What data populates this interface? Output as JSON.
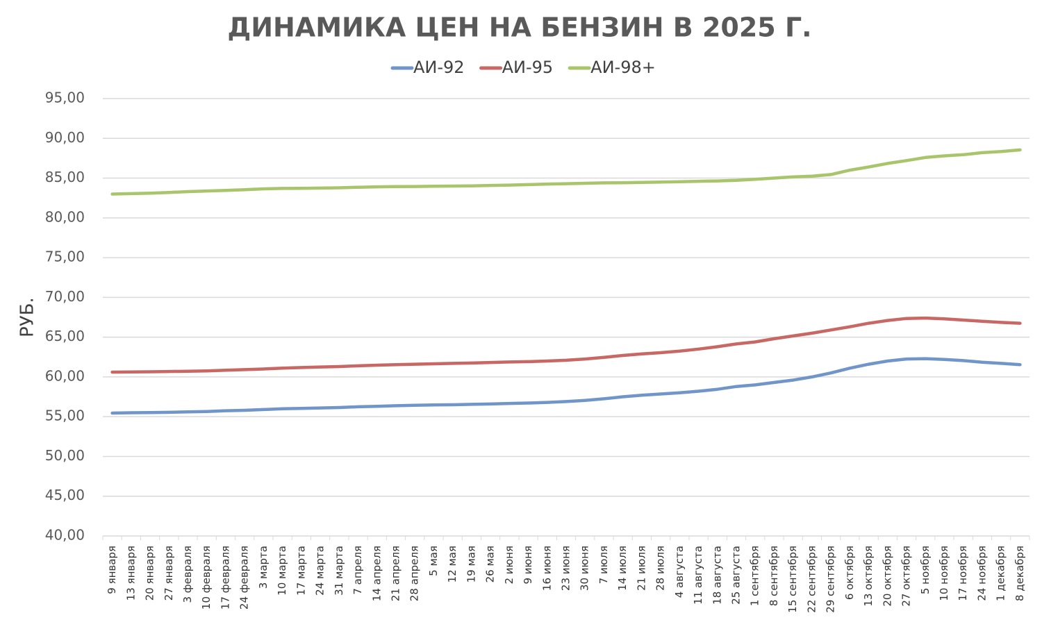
{
  "chart_data": {
    "type": "line",
    "title": "ДИНАМИКА ЦЕН НА БЕНЗИН В 2025 Г.",
    "y_label": "РУБ.",
    "legend": "top",
    "grid": true,
    "categories": [
      "9 января",
      "13 января",
      "20 января",
      "27 января",
      "3 февраля",
      "10 февраля",
      "17 февраля",
      "24 февраля",
      "3 марта",
      "10 марта",
      "17 марта",
      "24 марта",
      "31 марта",
      "7 апреля",
      "14 апреля",
      "21 апреля",
      "28 апреля",
      "5 мая",
      "12 мая",
      "19 мая",
      "26 мая",
      "2 июня",
      "9 июня",
      "16 июня",
      "23 июня",
      "30 июня",
      "7 июля",
      "14 июля",
      "21 июля",
      "28 июля",
      "4 августа",
      "11 августа",
      "18 августа",
      "25 августа",
      "1 сентября",
      "8 сентября",
      "15 сентября",
      "22 сентября",
      "29 сентября",
      "6 октября",
      "13 октября",
      "20 октября",
      "27 октября",
      "5 ноября",
      "10 ноября",
      "17 ноября",
      "24 ноября",
      "1 декабря",
      "8 декабря"
    ],
    "series": [
      {
        "name": "АИ-92",
        "color": "#7095c8",
        "values": [
          55.45,
          55.5,
          55.52,
          55.55,
          55.6,
          55.65,
          55.75,
          55.8,
          55.9,
          56.0,
          56.05,
          56.1,
          56.15,
          56.25,
          56.3,
          56.38,
          56.43,
          56.47,
          56.5,
          56.55,
          56.6,
          56.67,
          56.72,
          56.8,
          56.9,
          57.05,
          57.25,
          57.5,
          57.7,
          57.85,
          58.0,
          58.2,
          58.45,
          58.8,
          59.0,
          59.3,
          59.6,
          60.0,
          60.5,
          61.1,
          61.6,
          62.0,
          62.25,
          62.3,
          62.2,
          62.05,
          61.85,
          61.7,
          61.55
        ]
      },
      {
        "name": "АИ-95",
        "color": "#c76864",
        "values": [
          60.6,
          60.62,
          60.65,
          60.68,
          60.72,
          60.76,
          60.85,
          60.92,
          61.0,
          61.1,
          61.18,
          61.25,
          61.3,
          61.4,
          61.48,
          61.55,
          61.6,
          61.65,
          61.7,
          61.75,
          61.82,
          61.88,
          61.92,
          62.0,
          62.1,
          62.25,
          62.45,
          62.7,
          62.9,
          63.05,
          63.25,
          63.5,
          63.8,
          64.15,
          64.4,
          64.8,
          65.15,
          65.5,
          65.9,
          66.3,
          66.75,
          67.1,
          67.35,
          67.4,
          67.3,
          67.15,
          67.0,
          66.85,
          66.75
        ]
      },
      {
        "name": "АИ-98+",
        "color": "#a8c56c",
        "values": [
          83.0,
          83.05,
          83.1,
          83.2,
          83.3,
          83.38,
          83.45,
          83.55,
          83.65,
          83.7,
          83.72,
          83.75,
          83.78,
          83.85,
          83.9,
          83.93,
          83.95,
          83.97,
          84.0,
          84.03,
          84.08,
          84.12,
          84.18,
          84.25,
          84.3,
          84.35,
          84.4,
          84.42,
          84.45,
          84.5,
          84.55,
          84.6,
          84.65,
          84.72,
          84.85,
          85.0,
          85.15,
          85.25,
          85.45,
          86.0,
          86.4,
          86.85,
          87.2,
          87.6,
          87.8,
          87.95,
          88.2,
          88.35,
          88.55
        ]
      }
    ],
    "ylim": [
      40,
      95
    ],
    "yticks": [
      {
        "value": 40,
        "label": "40,00"
      },
      {
        "value": 45,
        "label": "45,00"
      },
      {
        "value": 50,
        "label": "50,00"
      },
      {
        "value": 55,
        "label": "55,00"
      },
      {
        "value": 60,
        "label": "60,00"
      },
      {
        "value": 65,
        "label": "65,00"
      },
      {
        "value": 70,
        "label": "70,00"
      },
      {
        "value": 75,
        "label": "75,00"
      },
      {
        "value": 80,
        "label": "80,00"
      },
      {
        "value": 85,
        "label": "85,00"
      },
      {
        "value": 90,
        "label": "90,00"
      },
      {
        "value": 95,
        "label": "95,00"
      }
    ]
  }
}
